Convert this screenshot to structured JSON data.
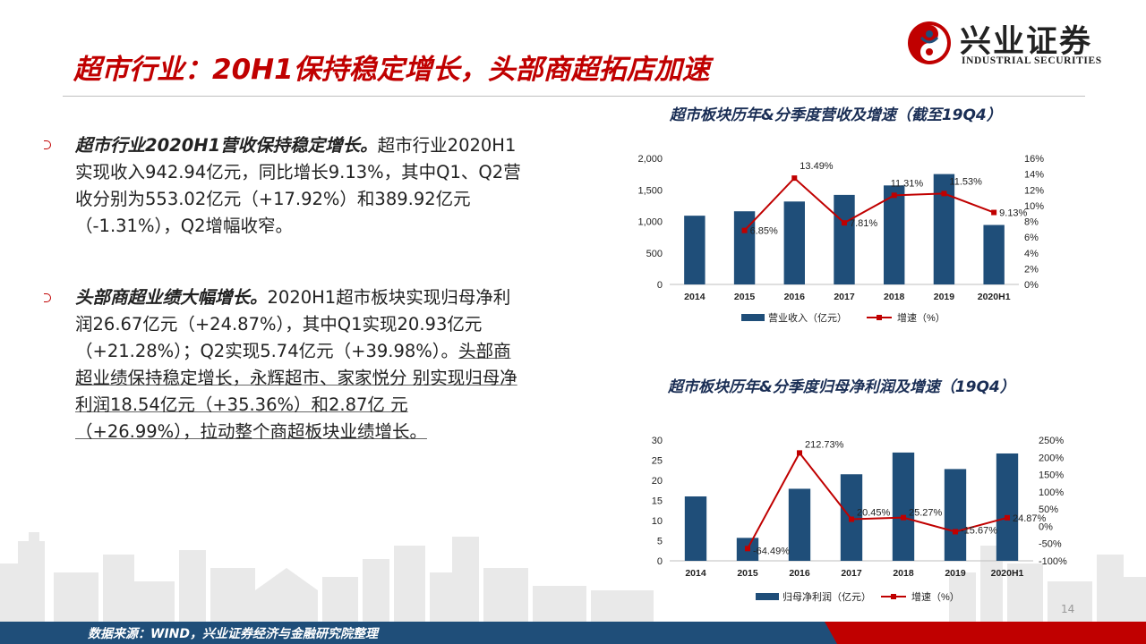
{
  "header": {
    "title": "超市行业：20H1保持稳定增长，头部商超拓店加速",
    "logo_cn": "兴业证券",
    "logo_en": "INDUSTRIAL SECURITIES"
  },
  "paragraphs": [
    {
      "lead": "超市行业2020H1营收保持稳定增长。",
      "body": "超市行业2020H1实现收入942.94亿元，同比增长9.13%，其中Q1、Q2营收分别为553.02亿元（+17.92%）和389.92亿元（-1.31%），Q2增幅收窄。"
    },
    {
      "lead": "头部商超业绩大幅增长。",
      "body": "2020H1超市板块实现归母净利润26.67亿元（+24.87%），其中Q1实现20.93亿元（+21.28%）；Q2实现5.74亿元（+39.98%）。",
      "underlined": "头部商超业绩保持稳定增长，永辉超市、家家悦分 别实现归母净利润18.54亿元（+35.36%）和2.87亿 元（+26.99%），拉动整个商超板块业绩增长。"
    }
  ],
  "chart_data": [
    {
      "type": "bar",
      "title": "超市板块历年&分季度营收及增速（截至19Q4）",
      "categories": [
        "2014",
        "2015",
        "2016",
        "2017",
        "2018",
        "2019",
        "2020H1"
      ],
      "series": [
        {
          "name": "营业收入（亿元）",
          "type": "bar",
          "axis": "left",
          "values": [
            1090,
            1160,
            1315,
            1420,
            1570,
            1750,
            943
          ]
        },
        {
          "name": "增速（%）",
          "type": "line",
          "axis": "right",
          "values": [
            null,
            6.85,
            13.49,
            7.81,
            11.31,
            11.53,
            9.13
          ]
        }
      ],
      "data_labels": [
        "6.85%",
        "13.49%",
        "7.81%",
        "11.31%",
        "11.53%",
        "9.13%"
      ],
      "left_ticks": [
        "0",
        "500",
        "1,000",
        "1,500",
        "2,000"
      ],
      "right_ticks": [
        "0%",
        "2%",
        "4%",
        "6%",
        "8%",
        "10%",
        "12%",
        "14%",
        "16%"
      ],
      "ylim_left": [
        0,
        2000
      ],
      "ylim_right": [
        0,
        16
      ],
      "legend": "bottom"
    },
    {
      "type": "bar",
      "title": "超市板块历年&分季度归母净利润及增速（19Q4）",
      "categories": [
        "2014",
        "2015",
        "2016",
        "2017",
        "2018",
        "2019",
        "2020H1"
      ],
      "series": [
        {
          "name": "归母净利润（亿元）",
          "type": "bar",
          "axis": "left",
          "values": [
            16,
            5.7,
            17.9,
            21.5,
            26.9,
            22.8,
            26.67
          ]
        },
        {
          "name": "增速（%）",
          "type": "line",
          "axis": "right",
          "values": [
            null,
            -64.49,
            212.73,
            20.45,
            25.27,
            -15.67,
            24.87
          ]
        }
      ],
      "data_labels": [
        "-64.49%",
        "212.73%",
        "20.45%",
        "25.27%",
        "-15.67%",
        "24.87%"
      ],
      "left_ticks": [
        "0",
        "5",
        "10",
        "15",
        "20",
        "25",
        "30"
      ],
      "right_ticks": [
        "-100%",
        "-50%",
        "0%",
        "50%",
        "100%",
        "150%",
        "200%",
        "250%"
      ],
      "ylim_left": [
        0,
        30
      ],
      "ylim_right": [
        -100,
        250
      ],
      "legend": "bottom"
    }
  ],
  "footer": {
    "source": "数据来源：WIND，兴业证券经济与金融研究院整理",
    "page": "14"
  },
  "colors": {
    "title_red": "#c00000",
    "bar_navy": "#1f4e79",
    "line_red": "#c00000",
    "footer_blue": "#1f4e79"
  }
}
